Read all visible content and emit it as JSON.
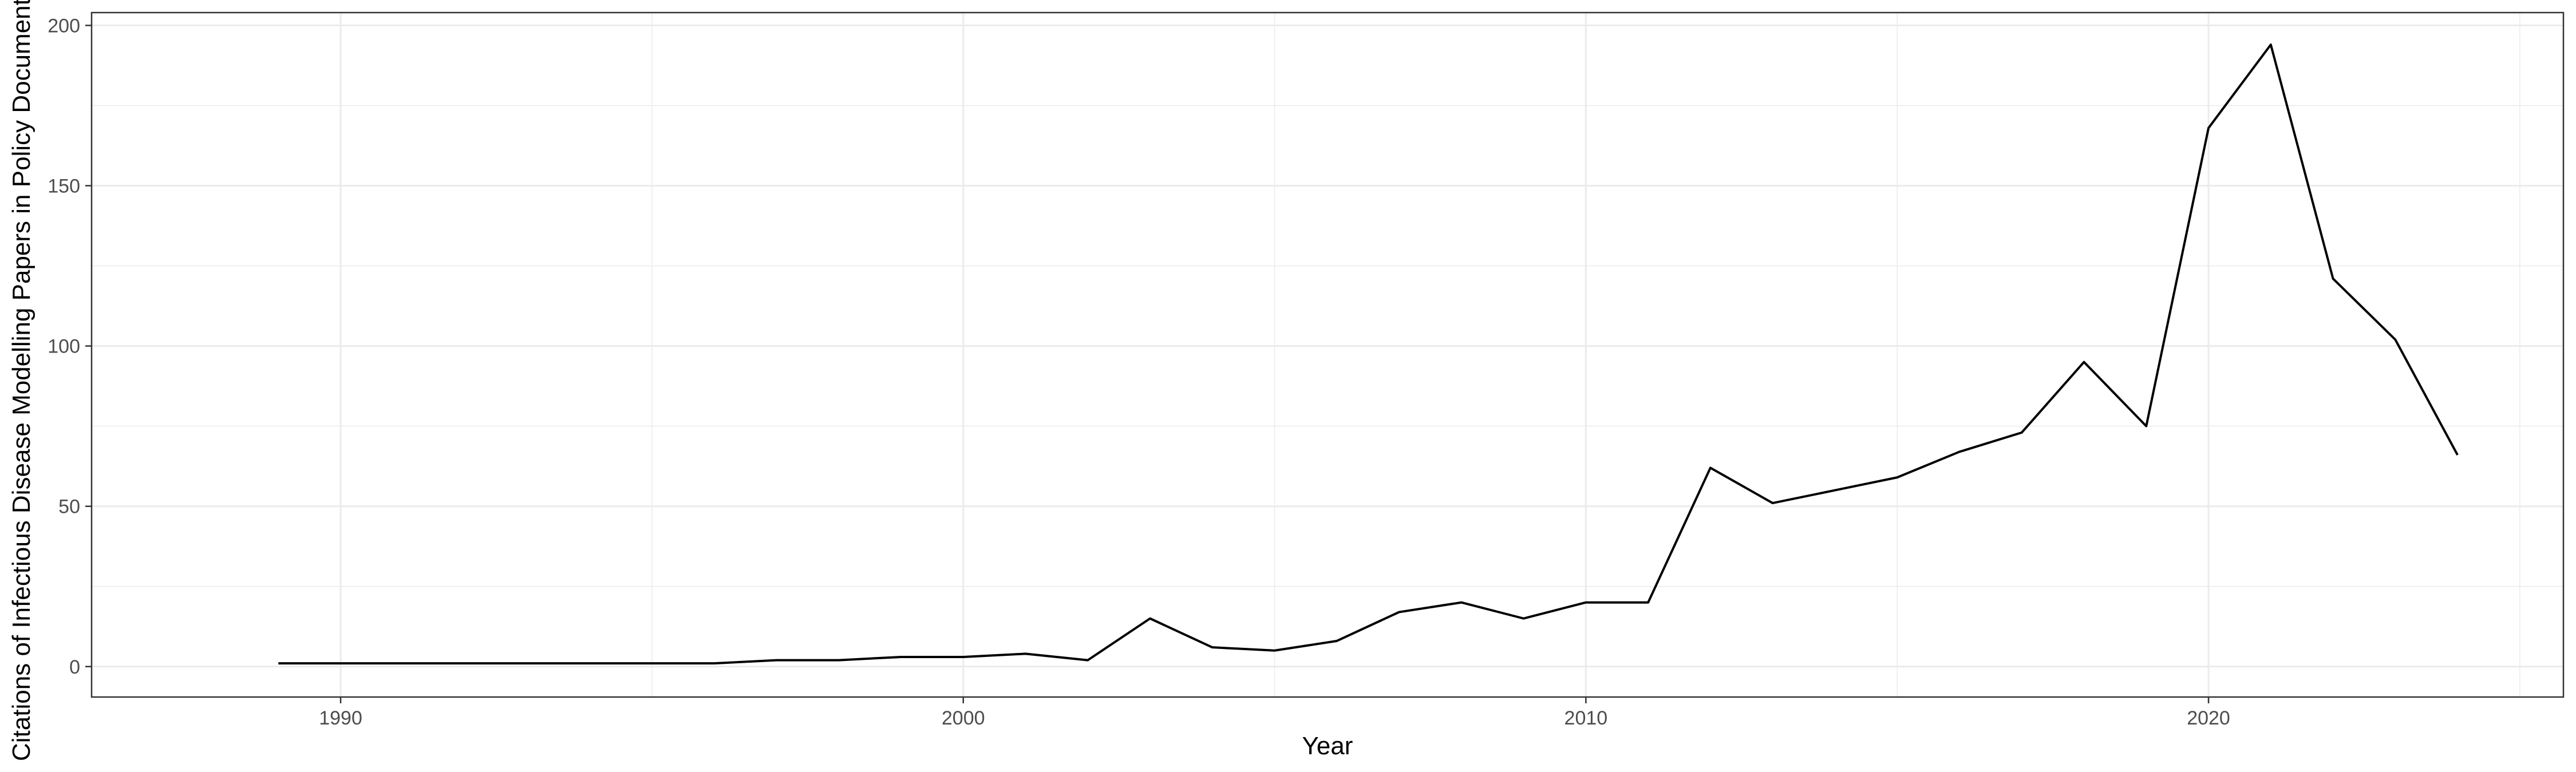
{
  "chart_data": {
    "type": "line",
    "title": "",
    "xlabel": "Year",
    "ylabel": "Citations of Infectious Disease Modelling Papers in Policy Documents",
    "xlim": [
      1986.0,
      2025.7
    ],
    "ylim": [
      -9.5,
      204
    ],
    "x_ticks": [
      1990,
      2000,
      2010,
      2020
    ],
    "y_ticks": [
      0,
      50,
      100,
      150,
      200
    ],
    "grid": true,
    "legend": "none",
    "colors": {
      "line": "#000000",
      "grid": "#ebebeb",
      "border": "#333333",
      "background": "#ffffff"
    },
    "series": [
      {
        "x": [
          1989,
          1990,
          1991,
          1992,
          1993,
          1994,
          1995,
          1996,
          1997,
          1998,
          1999,
          2000,
          2001,
          2002,
          2003,
          2004,
          2005,
          2006,
          2007,
          2008,
          2009,
          2010,
          2011,
          2012,
          2013,
          2014,
          2015,
          2016,
          2017,
          2018,
          2019,
          2020,
          2021,
          2022,
          2023,
          2024
        ],
        "values": [
          1,
          1,
          1,
          1,
          1,
          1,
          1,
          1,
          2,
          2,
          3,
          3,
          4,
          2,
          15,
          6,
          5,
          8,
          17,
          20,
          15,
          20,
          20,
          62,
          51,
          55,
          59,
          67,
          73,
          95,
          75,
          168,
          194,
          121,
          102,
          66
        ]
      }
    ]
  }
}
